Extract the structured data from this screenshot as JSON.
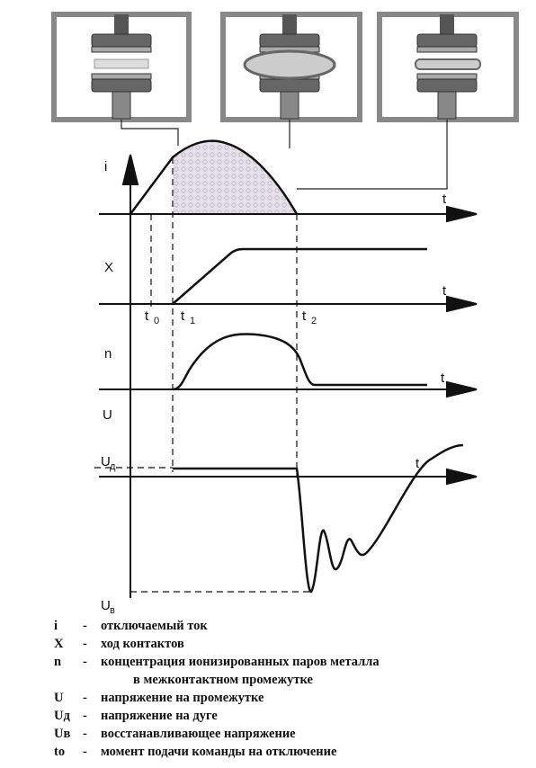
{
  "diagram": {
    "labels": [
      {
        "text": "i"
      },
      {
        "text": "t"
      },
      {
        "text": "X"
      },
      {
        "text": "t"
      },
      {
        "text": "t",
        "sub": "0"
      },
      {
        "text": "t",
        "sub": "1"
      },
      {
        "text": "t",
        "sub": "2"
      },
      {
        "text": "n"
      },
      {
        "text": "t"
      },
      {
        "text": "U"
      },
      {
        "text": "U",
        "sub": "д"
      },
      {
        "text": "t"
      },
      {
        "text": "U",
        "sub": "в"
      }
    ]
  },
  "legend": {
    "separator": "-",
    "items": [
      {
        "symbol": "i",
        "lines": [
          "отключаемый ток"
        ]
      },
      {
        "symbol": "X",
        "lines": [
          "ход контактов"
        ]
      },
      {
        "symbol": "n",
        "lines": [
          "концентрация ионизированных паров металла",
          "в межконтактном промежутке"
        ]
      },
      {
        "symbol": "U",
        "lines": [
          "напряжение на промежутке"
        ]
      },
      {
        "symbol": "Uд",
        "lines": [
          "напряжение на дуге"
        ]
      },
      {
        "symbol": "Uв",
        "lines": [
          "восстанавливающее напряжение"
        ]
      },
      {
        "symbol": "to",
        "lines": [
          "момент подачи команды на отключение"
        ]
      }
    ]
  }
}
